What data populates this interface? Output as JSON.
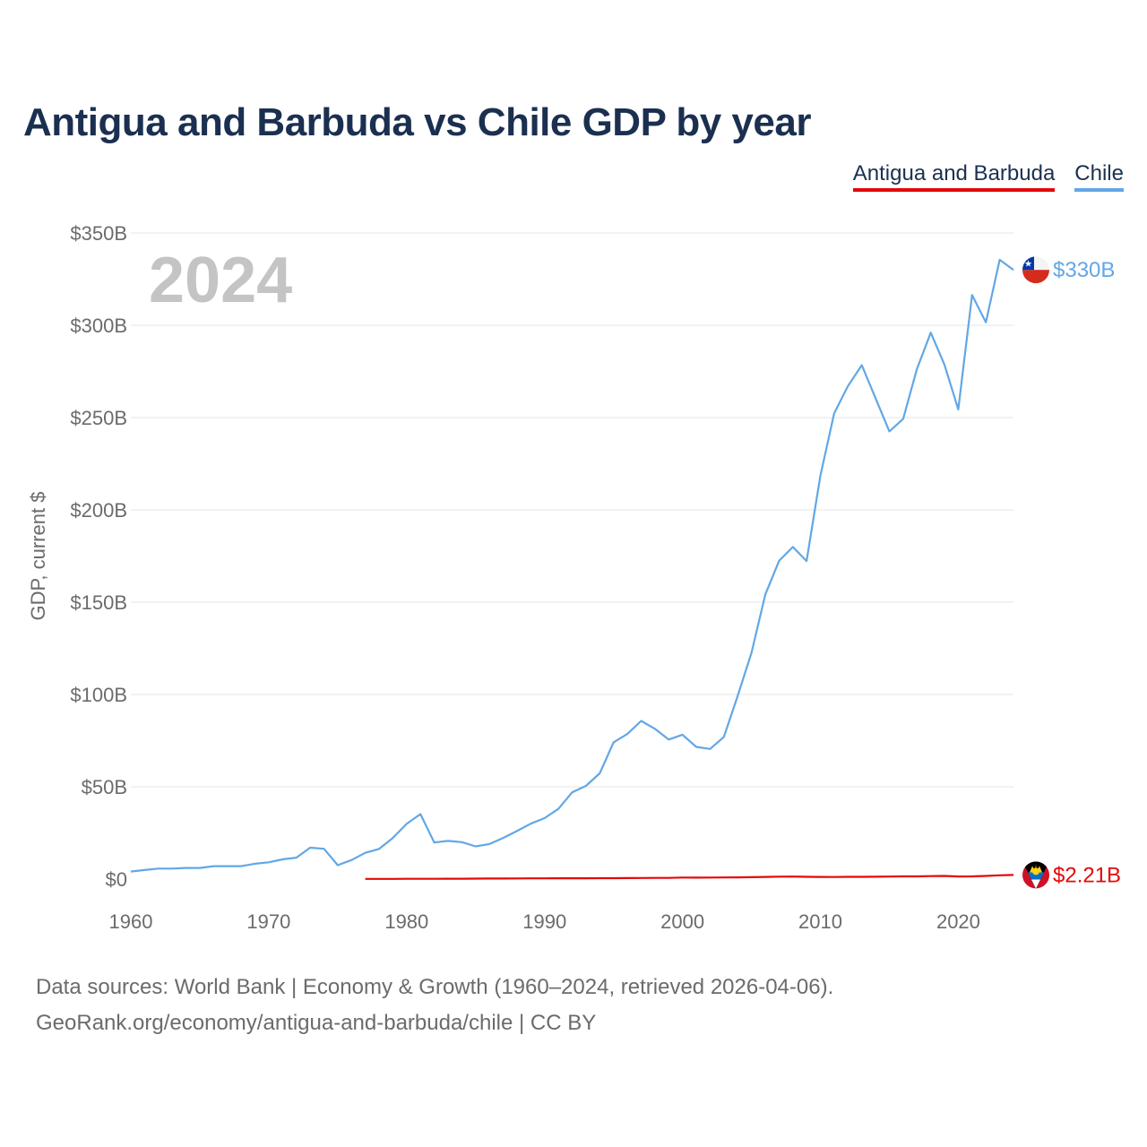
{
  "chart_data": {
    "type": "line",
    "title": "Antigua and Barbuda vs Chile GDP by year",
    "year_label": "2024",
    "ylabel": "GDP, current $",
    "xlabel": "",
    "xlim": [
      1960,
      2024
    ],
    "ylim": [
      0,
      350
    ],
    "y_unit": "billions USD",
    "x_ticks": [
      1960,
      1970,
      1980,
      1990,
      2000,
      2010,
      2020
    ],
    "y_ticks": [
      {
        "value": 0,
        "label": "$0"
      },
      {
        "value": 50,
        "label": "$50B"
      },
      {
        "value": 100,
        "label": "$100B"
      },
      {
        "value": 150,
        "label": "$150B"
      },
      {
        "value": 200,
        "label": "$200B"
      },
      {
        "value": 250,
        "label": "$250B"
      },
      {
        "value": 300,
        "label": "$300B"
      },
      {
        "value": 350,
        "label": "$350B"
      }
    ],
    "legend_position": "top-right",
    "series": [
      {
        "name": "Antigua and Barbuda",
        "color": "#e4080a",
        "end_label": "$2.21B",
        "flag_icon": "antigua-flag-icon",
        "x": [
          1977,
          1978,
          1979,
          1980,
          1981,
          1982,
          1983,
          1984,
          1985,
          1986,
          1987,
          1988,
          1989,
          1990,
          1991,
          1992,
          1993,
          1994,
          1995,
          1996,
          1997,
          1998,
          1999,
          2000,
          2001,
          2002,
          2003,
          2004,
          2005,
          2006,
          2007,
          2008,
          2009,
          2010,
          2011,
          2012,
          2013,
          2014,
          2015,
          2016,
          2017,
          2018,
          2019,
          2020,
          2021,
          2022,
          2023,
          2024
        ],
        "values": [
          0.08,
          0.09,
          0.1,
          0.13,
          0.15,
          0.16,
          0.18,
          0.2,
          0.23,
          0.27,
          0.3,
          0.34,
          0.38,
          0.4,
          0.42,
          0.44,
          0.46,
          0.5,
          0.49,
          0.53,
          0.58,
          0.62,
          0.65,
          0.83,
          0.8,
          0.81,
          0.85,
          0.9,
          1.0,
          1.15,
          1.3,
          1.35,
          1.2,
          1.15,
          1.13,
          1.2,
          1.19,
          1.25,
          1.34,
          1.44,
          1.47,
          1.58,
          1.69,
          1.4,
          1.47,
          1.71,
          2.03,
          2.21
        ]
      },
      {
        "name": "Chile",
        "color": "#62a7e6",
        "end_label": "$330B",
        "flag_icon": "chile-flag-icon",
        "x": [
          1960,
          1961,
          1962,
          1963,
          1964,
          1965,
          1966,
          1967,
          1968,
          1969,
          1970,
          1971,
          1972,
          1973,
          1974,
          1975,
          1976,
          1977,
          1978,
          1979,
          1980,
          1981,
          1982,
          1983,
          1984,
          1985,
          1986,
          1987,
          1988,
          1989,
          1990,
          1991,
          1992,
          1993,
          1994,
          1995,
          1996,
          1997,
          1998,
          1999,
          2000,
          2001,
          2002,
          2003,
          2004,
          2005,
          2006,
          2007,
          2008,
          2009,
          2010,
          2011,
          2012,
          2013,
          2014,
          2015,
          2016,
          2017,
          2018,
          2019,
          2020,
          2021,
          2022,
          2023,
          2024
        ],
        "values": [
          4.1,
          4.9,
          5.7,
          5.7,
          6.0,
          6.0,
          7.0,
          7.0,
          7.0,
          8.3,
          9.1,
          10.7,
          11.6,
          17.0,
          16.4,
          7.5,
          10.3,
          14.2,
          16.3,
          22.3,
          29.9,
          35.2,
          19.8,
          20.7,
          20.0,
          17.7,
          19.0,
          22.3,
          26.0,
          30.0,
          33.0,
          38.0,
          47.0,
          50.5,
          57.3,
          74.1,
          78.6,
          85.7,
          81.4,
          75.6,
          78.2,
          71.6,
          70.5,
          77.0,
          99.2,
          122.5,
          154.1,
          172.4,
          179.9,
          172.3,
          218.5,
          252.3,
          267.1,
          278.4,
          260.5,
          242.5,
          249.3,
          276.4,
          296.0,
          278.6,
          254.4,
          316.4,
          301.6,
          335.5,
          330.0
        ]
      }
    ]
  },
  "legend": {
    "antigua_label": "Antigua and Barbuda",
    "chile_label": "Chile"
  },
  "footer": {
    "sources": "Data sources: World Bank | Economy & Growth (1960–2024, retrieved 2026-04-06).",
    "link": "GeoRank.org/economy/antigua-and-barbuda/chile | CC BY"
  }
}
